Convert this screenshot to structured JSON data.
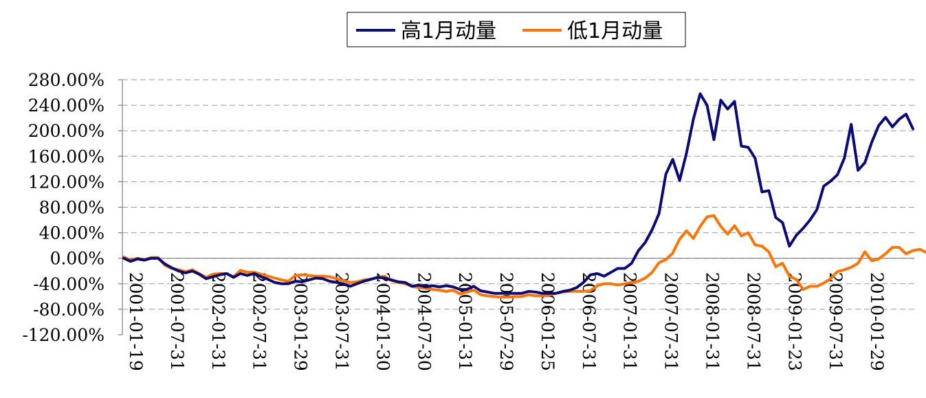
{
  "chart_data": {
    "type": "line",
    "legend_position": "top-center",
    "grid": true,
    "ylim": [
      -120,
      280
    ],
    "y_ticks": [
      "280.00%",
      "240.00%",
      "200.00%",
      "160.00%",
      "120.00%",
      "80.00%",
      "40.00%",
      "0.00%",
      "-40.00%",
      "-80.00%",
      "-120.00%"
    ],
    "x_ticks": [
      "2001-01-19",
      "2001-07-31",
      "2002-01-31",
      "2002-07-31",
      "2003-01-29",
      "2003-07-31",
      "2004-01-30",
      "2004-07-30",
      "2005-01-31",
      "2005-07-29",
      "2006-01-25",
      "2006-07-31",
      "2007-01-31",
      "2007-07-31",
      "2008-01-31",
      "2008-07-31",
      "2009-01-23",
      "2009-07-31",
      "2010-01-29"
    ],
    "series": [
      {
        "name": "高1月动量",
        "color": "#0a0a78",
        "values": [
          0,
          -5,
          -1,
          -3,
          0,
          0,
          -9,
          -15,
          -20,
          -23,
          -20,
          -25,
          -32,
          -29,
          -26,
          -24,
          -30,
          -24,
          -27,
          -24,
          -29,
          -33,
          -38,
          -40,
          -40,
          -36,
          -37,
          -34,
          -31,
          -32,
          -36,
          -38,
          -40,
          -44,
          -40,
          -36,
          -33,
          -30,
          -31,
          -34,
          -37,
          -38,
          -44,
          -42,
          -45,
          -43,
          -45,
          -43,
          -45,
          -49,
          -49,
          -44,
          -51,
          -53,
          -55,
          -55,
          -55,
          -55,
          -55,
          -52,
          -53,
          -55,
          -55,
          -55,
          -52,
          -50,
          -46,
          -38,
          -26,
          -24,
          -28,
          -22,
          -16,
          -16,
          -8,
          12,
          25,
          45,
          70,
          132,
          155,
          122,
          165,
          218,
          258,
          240,
          186,
          248,
          234,
          246,
          176,
          174,
          157,
          104,
          106,
          64,
          56,
          19,
          36,
          47,
          60,
          76,
          113,
          121,
          131,
          157,
          210,
          138,
          150,
          182,
          208,
          221,
          206,
          218,
          226,
          203
        ]
      },
      {
        "name": "低1月动量",
        "color": "#ff7400",
        "values": [
          2,
          -3,
          0,
          -2,
          1,
          1,
          -11,
          -16,
          -18,
          -21,
          -18,
          -24,
          -30,
          -25,
          -24,
          -24,
          -29,
          -19,
          -22,
          -22,
          -25,
          -28,
          -31,
          -34,
          -36,
          -27,
          -26,
          -27,
          -28,
          -28,
          -29,
          -32,
          -35,
          -38,
          -37,
          -34,
          -33,
          -30,
          -28,
          -35,
          -38,
          -40,
          -44,
          -46,
          -47,
          -49,
          -50,
          -52,
          -50,
          -56,
          -53,
          -50,
          -57,
          -59,
          -60,
          -61,
          -61,
          -60,
          -60,
          -57,
          -59,
          -59,
          -58,
          -55,
          -53,
          -52,
          -52,
          -52,
          -51,
          -43,
          -40,
          -40,
          -42,
          -40,
          -38,
          -36,
          -31,
          -22,
          -7,
          -2,
          8,
          30,
          43,
          31,
          50,
          65,
          67,
          50,
          38,
          51,
          35,
          40,
          21,
          19,
          10,
          -13,
          -8,
          -28,
          -33,
          -49,
          -44,
          -44,
          -39,
          -32,
          -21,
          -18,
          -14,
          -8,
          10,
          -4,
          -1,
          7,
          17,
          17,
          7,
          12,
          14,
          9
        ]
      }
    ]
  }
}
